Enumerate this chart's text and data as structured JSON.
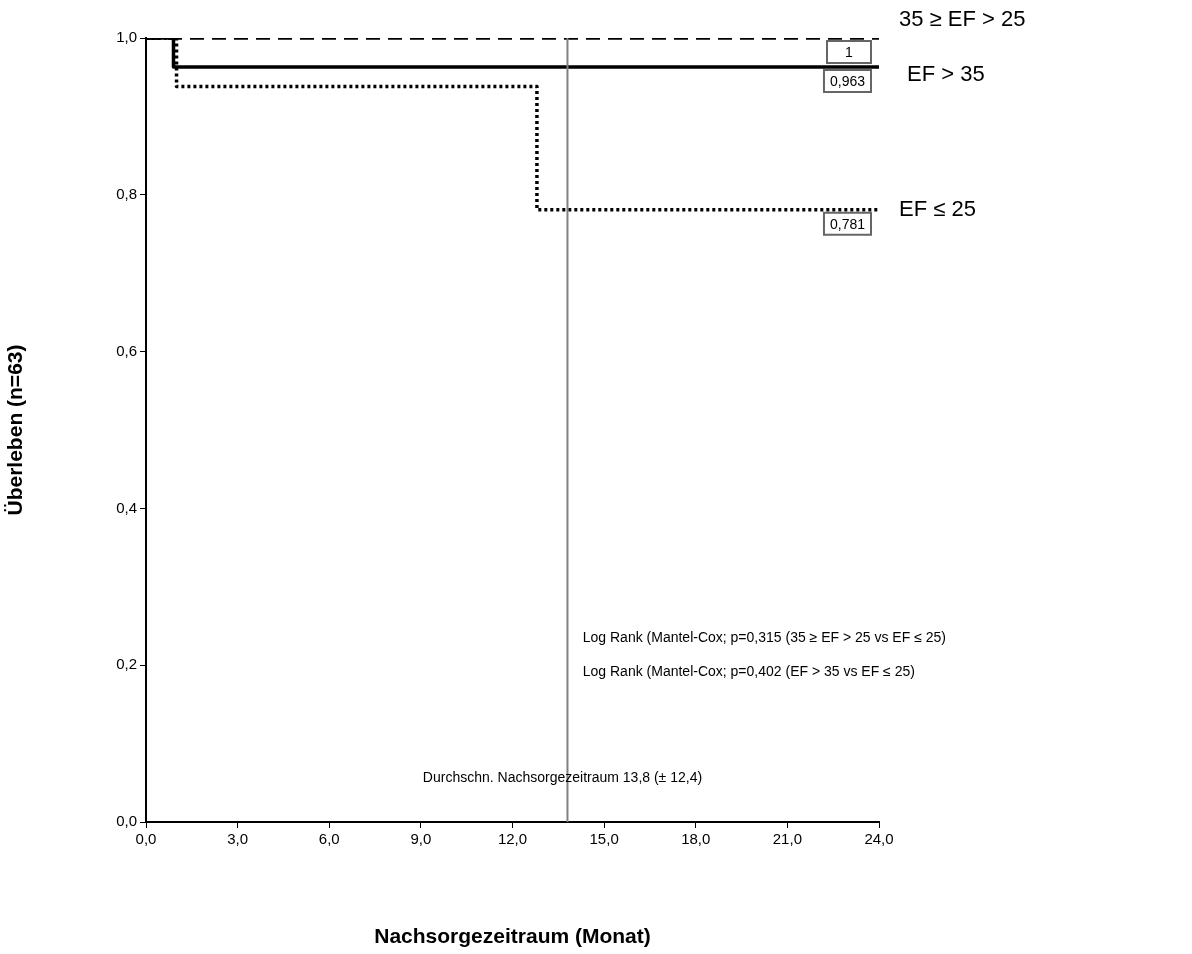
{
  "chart_data": {
    "type": "step",
    "xlabel": "Nachsorgezeitraum (Monat)",
    "ylabel": "Überleben (n=63)",
    "xlim": [
      0,
      24
    ],
    "xticks": [
      {
        "value": 0,
        "label": "0,0"
      },
      {
        "value": 3,
        "label": "3,0"
      },
      {
        "value": 6,
        "label": "6,0"
      },
      {
        "value": 9,
        "label": "9,0"
      },
      {
        "value": 12,
        "label": "12,0"
      },
      {
        "value": 15,
        "label": "15,0"
      },
      {
        "value": 18,
        "label": "18,0"
      },
      {
        "value": 21,
        "label": "21,0"
      },
      {
        "value": 24,
        "label": "24,0"
      }
    ],
    "ylim": [
      0,
      1
    ],
    "yticks": [
      {
        "value": 0,
        "label": "0,0"
      },
      {
        "value": 0.2,
        "label": "0,2"
      },
      {
        "value": 0.4,
        "label": "0,4"
      },
      {
        "value": 0.6,
        "label": "0,6"
      },
      {
        "value": 0.8,
        "label": "0,8"
      },
      {
        "value": 1,
        "label": "1,0"
      }
    ],
    "grid": false,
    "legend": false,
    "series": [
      {
        "name": "35 ≥ EF > 25",
        "color": "#000000",
        "line_style": "dashed",
        "x": [
          0,
          24
        ],
        "values": [
          1,
          1
        ],
        "value_labels": [
          null,
          "1"
        ]
      },
      {
        "name": "EF > 35",
        "color": "#000000",
        "line_style": "solid",
        "x": [
          0,
          0.9,
          24
        ],
        "values": [
          1,
          0.963,
          0.963
        ],
        "value_labels": [
          null,
          null,
          "0,963"
        ]
      },
      {
        "name": "EF ≤ 25",
        "color": "#000000",
        "line_style": "dotted",
        "x": [
          0,
          1,
          12.8,
          24
        ],
        "values": [
          1,
          0.938,
          0.781,
          0.781
        ],
        "value_labels": [
          null,
          null,
          null,
          "0,781"
        ]
      }
    ],
    "ref_lines": [
      {
        "axis": "x",
        "value": 13.8,
        "label": "Durchschn. Nachsorgezeitraum 13,8 (± 12,4)",
        "color": "#808080"
      }
    ],
    "annotations": [
      "Log Rank (Mantel-Cox; p=0,315 (35 ≥ EF > 25 vs EF ≤ 25)",
      "Log Rank (Mantel-Cox; p=0,402 (EF > 35 vs EF ≤ 25)"
    ]
  }
}
